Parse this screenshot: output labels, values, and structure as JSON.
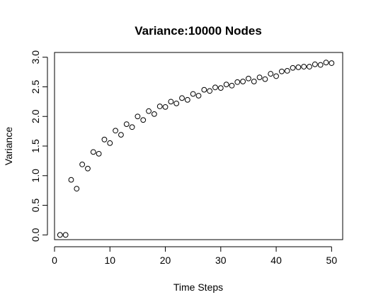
{
  "chart_data": {
    "type": "scatter",
    "title": "Variance:10000 Nodes",
    "xlabel": "Time Steps",
    "ylabel": "Variance",
    "xlim": [
      0,
      52
    ],
    "ylim": [
      -0.08,
      3.08
    ],
    "x_ticks": [
      0,
      10,
      20,
      30,
      40,
      50
    ],
    "x_tick_labels": [
      "0",
      "10",
      "20",
      "30",
      "40",
      "50"
    ],
    "y_ticks": [
      0.0,
      0.5,
      1.0,
      1.5,
      2.0,
      2.5,
      3.0
    ],
    "y_tick_labels": [
      "0.0",
      "0.5",
      "1.0",
      "1.5",
      "2.0",
      "2.5",
      "3.0"
    ],
    "grid": false,
    "marker": "open-circle",
    "x": [
      1,
      2,
      3,
      4,
      5,
      6,
      7,
      8,
      9,
      10,
      11,
      12,
      13,
      14,
      15,
      16,
      17,
      18,
      19,
      20,
      21,
      22,
      23,
      24,
      25,
      26,
      27,
      28,
      29,
      30,
      31,
      32,
      33,
      34,
      35,
      36,
      37,
      38,
      39,
      40,
      41,
      42,
      43,
      44,
      45,
      46,
      47,
      48,
      49,
      50
    ],
    "y": [
      0.0,
      0.0,
      0.93,
      0.78,
      1.19,
      1.12,
      1.4,
      1.37,
      1.61,
      1.55,
      1.76,
      1.69,
      1.87,
      1.82,
      2.0,
      1.94,
      2.09,
      2.04,
      2.17,
      2.16,
      2.25,
      2.22,
      2.31,
      2.28,
      2.38,
      2.35,
      2.45,
      2.43,
      2.49,
      2.48,
      2.54,
      2.52,
      2.58,
      2.59,
      2.64,
      2.59,
      2.66,
      2.63,
      2.72,
      2.68,
      2.76,
      2.77,
      2.82,
      2.83,
      2.84,
      2.84,
      2.88,
      2.87,
      2.91,
      2.9
    ]
  }
}
